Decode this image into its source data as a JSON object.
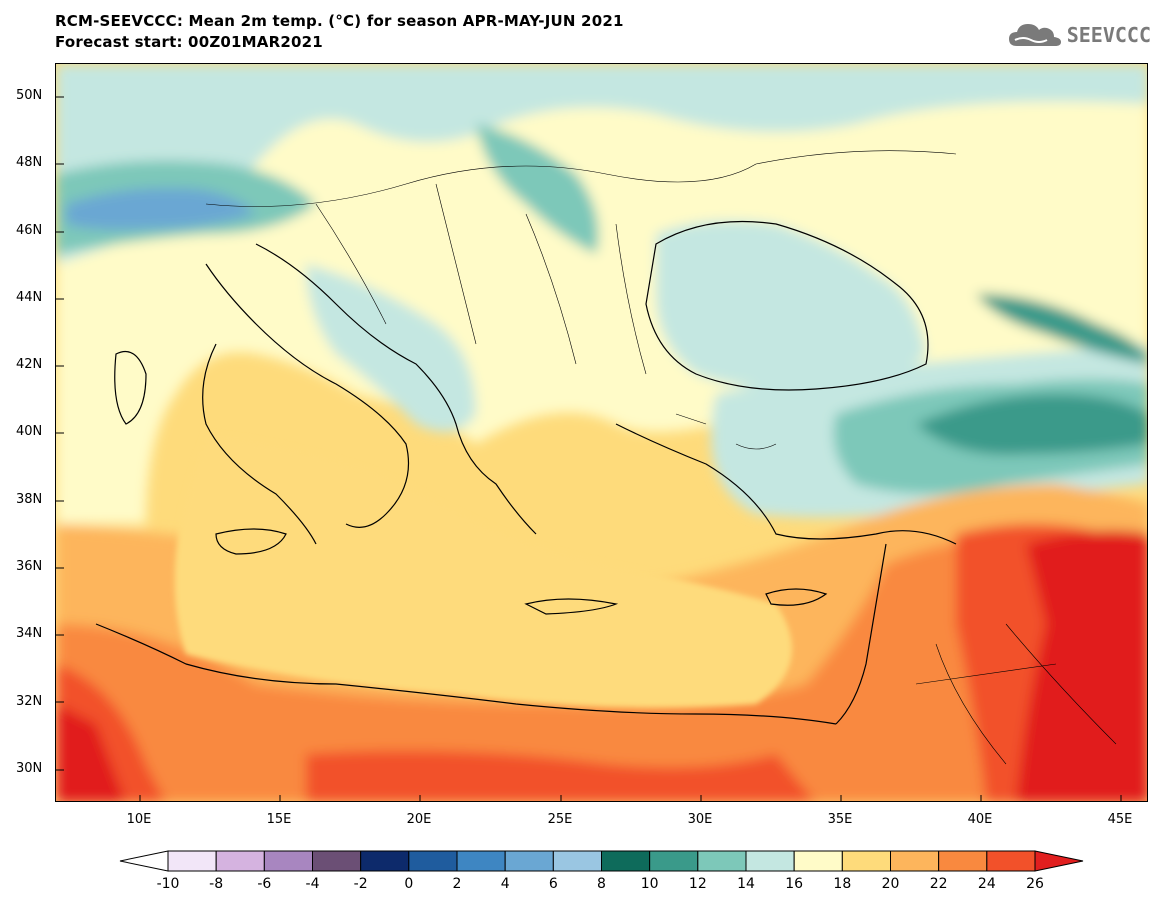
{
  "header": {
    "title_line1": "RCM-SEEVCCC: Mean 2m temp. (°C) for season APR-MAY-JUN 2021",
    "title_line2": "Forecast start: 00Z01MAR2021"
  },
  "logo": {
    "text": "SEEVCCC",
    "icon": "cloud-icon",
    "color": "#7a7a7a"
  },
  "map": {
    "type": "filled-contour",
    "variable": "Mean 2m temp. (°C)",
    "lat_labels": [
      "50N",
      "48N",
      "46N",
      "44N",
      "42N",
      "40N",
      "38N",
      "36N",
      "34N",
      "32N",
      "30N"
    ],
    "lat_values": [
      50,
      48,
      46,
      44,
      42,
      40,
      38,
      36,
      34,
      32,
      30
    ],
    "lon_labels": [
      "10E",
      "15E",
      "20E",
      "25E",
      "30E",
      "35E",
      "40E",
      "45E"
    ],
    "lon_values": [
      10,
      15,
      20,
      25,
      30,
      35,
      40,
      45
    ],
    "lon_range": [
      7,
      46
    ],
    "lat_range": [
      29,
      51
    ]
  },
  "colorbar": {
    "labels": [
      "-10",
      "-8",
      "-6",
      "-4",
      "-2",
      "0",
      "2",
      "4",
      "6",
      "8",
      "10",
      "12",
      "14",
      "16",
      "18",
      "20",
      "22",
      "24",
      "26"
    ],
    "under_color": "#ffffff",
    "over_color": "#e11f1f",
    "colors": [
      "#f2e6f8",
      "#d5b3e0",
      "#a886c0",
      "#6b4f75",
      "#0d2a6b",
      "#1f5c9e",
      "#3e86c2",
      "#6aa7d3",
      "#9ac6e2",
      "#0e6b5b",
      "#3a9a8a",
      "#7dc8b9",
      "#c4e7e1",
      "#fffbc8",
      "#fedb7b",
      "#fdb55c",
      "#f9893f",
      "#f2512a"
    ]
  }
}
